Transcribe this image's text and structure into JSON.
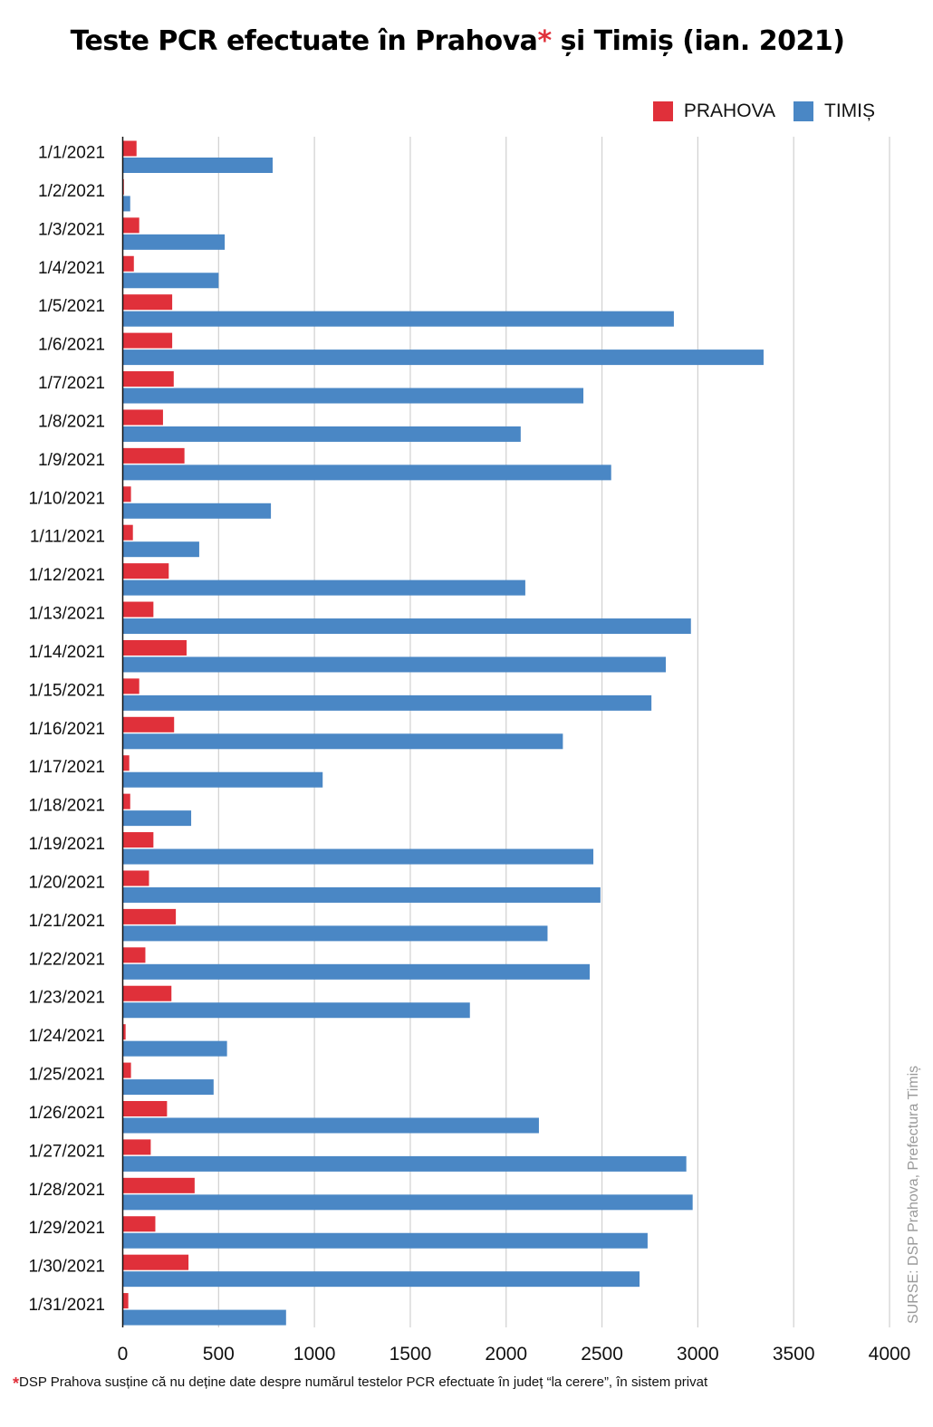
{
  "chart_data": {
    "type": "bar",
    "orientation": "horizontal",
    "title": "Teste PCR efectuate în Prahova* și Timiș (ian. 2021)",
    "title_parts": {
      "before_star": "Teste PCR efectuate în Prahova",
      "star": "*",
      "after_star": " și Timiș (ian. 2021)"
    },
    "xlabel": "",
    "ylabel": "",
    "xlim": [
      0,
      4000
    ],
    "x_ticks": [
      0,
      500,
      1000,
      1500,
      2000,
      2500,
      3000,
      3500,
      4000
    ],
    "x_tick_labels": [
      "0",
      "500",
      "1000",
      "1500",
      "2000",
      "2500",
      "3000",
      "3500",
      "4000"
    ],
    "grid": true,
    "legend_position": "top-right",
    "categories": [
      "1/1/2021",
      "1/2/2021",
      "1/3/2021",
      "1/4/2021",
      "1/5/2021",
      "1/6/2021",
      "1/7/2021",
      "1/8/2021",
      "1/9/2021",
      "1/10/2021",
      "1/11/2021",
      "1/12/2021",
      "1/13/2021",
      "1/14/2021",
      "1/15/2021",
      "1/16/2021",
      "1/17/2021",
      "1/18/2021",
      "1/19/2021",
      "1/20/2021",
      "1/21/2021",
      "1/22/2021",
      "1/23/2021",
      "1/24/2021",
      "1/25/2021",
      "1/26/2021",
      "1/27/2021",
      "1/28/2021",
      "1/29/2021",
      "1/30/2021",
      "1/31/2021"
    ],
    "series": [
      {
        "name": "PRAHOVA",
        "color": "#e0303a",
        "values": [
          72,
          6,
          86,
          58,
          258,
          258,
          266,
          210,
          322,
          43,
          53,
          240,
          160,
          333,
          86,
          268,
          34,
          39,
          160,
          137,
          277,
          118,
          254,
          15,
          43,
          231,
          146,
          375,
          170,
          343,
          29
        ]
      },
      {
        "name": "TIMIȘ",
        "color": "#4a87c5",
        "values": [
          782,
          39,
          532,
          500,
          2875,
          3343,
          2403,
          2076,
          2548,
          773,
          399,
          2100,
          2964,
          2833,
          2758,
          2296,
          1043,
          357,
          2455,
          2492,
          2216,
          2436,
          1811,
          544,
          474,
          2171,
          2940,
          2973,
          2738,
          2696,
          852
        ]
      }
    ],
    "source": "SURSE: DSP Prahova, Prefectura Timiș",
    "footnote": {
      "star": "*",
      "text": "DSP Prahova susține că nu deține date despre numărul testelor PCR efectuate în județ “la cerere”, în sistem privat"
    }
  }
}
